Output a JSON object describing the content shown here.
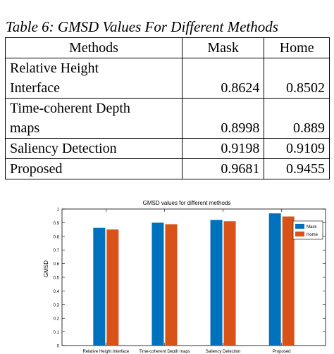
{
  "caption": "Table 6: GMSD Values For Different Methods",
  "table": {
    "headers": [
      "Methods",
      "Mask",
      "Home"
    ],
    "rows": [
      {
        "method_line1": "Relative Height",
        "method_line2": "Interface",
        "mask": "0.8624",
        "home": "0.8502"
      },
      {
        "method_line1": "Time-coherent Depth",
        "method_line2": "maps",
        "mask": "0.8998",
        "home": "0.889"
      },
      {
        "method_line1": "Saliency Detection",
        "method_line2": "",
        "mask": "0.9198",
        "home": "0.9109"
      },
      {
        "method_line1": "Proposed",
        "method_line2": "",
        "mask": "0.9681",
        "home": "0.9455"
      }
    ]
  },
  "chart_data": {
    "type": "bar",
    "title": "GMSD values for different methods",
    "xlabel": "",
    "ylabel": "GMSD",
    "categories": [
      "Relative Height Interface",
      "Time-coherent Depth maps",
      "Saliency Detection",
      "Proposed"
    ],
    "series": [
      {
        "name": "Mask",
        "color": "#0072bd",
        "values": [
          0.8624,
          0.8998,
          0.9198,
          0.9681
        ]
      },
      {
        "name": "Home",
        "color": "#d95319",
        "values": [
          0.8502,
          0.889,
          0.9109,
          0.9455
        ]
      }
    ],
    "ylim": [
      0,
      1
    ],
    "yticks": [
      "0",
      "0.1",
      "0.2",
      "0.3",
      "0.4",
      "0.5",
      "0.6",
      "0.7",
      "0.8",
      "0.9",
      "1"
    ],
    "grid": false,
    "legend_position": "top-right"
  }
}
